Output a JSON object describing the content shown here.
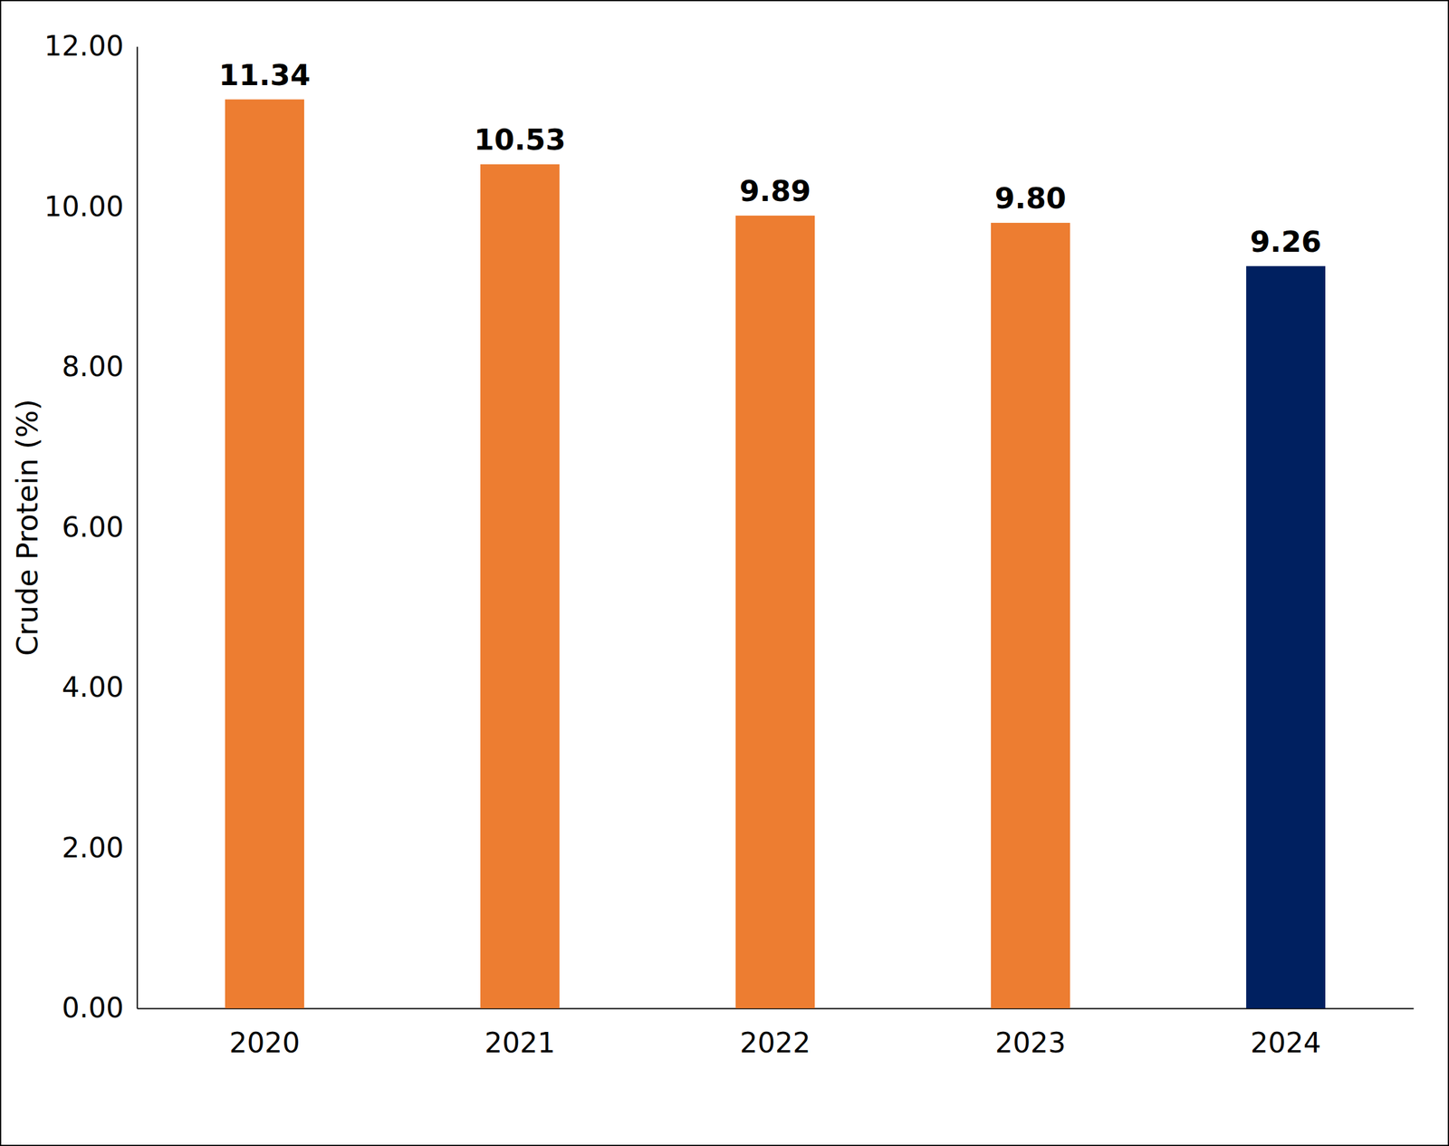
{
  "chart_data": {
    "type": "bar",
    "y_label": "Crude Protein (%)",
    "categories": [
      "2020",
      "2021",
      "2022",
      "2023",
      "2024"
    ],
    "values": [
      11.34,
      10.53,
      9.89,
      9.8,
      9.26
    ],
    "value_labels": [
      "11.34",
      "10.53",
      "9.89",
      "9.80",
      "9.26"
    ],
    "colors": [
      "#ED7D31",
      "#ED7D31",
      "#ED7D31",
      "#ED7D31",
      "#002060"
    ],
    "ylim": [
      0,
      12
    ],
    "yticks": [
      {
        "value": 0,
        "label": "0.00"
      },
      {
        "value": 2,
        "label": "2.00"
      },
      {
        "value": 4,
        "label": "4.00"
      },
      {
        "value": 6,
        "label": "6.00"
      },
      {
        "value": 8,
        "label": "8.00"
      },
      {
        "value": 10,
        "label": "10.00"
      },
      {
        "value": 12,
        "label": "12.00"
      }
    ],
    "grid": false,
    "data_labels": true
  }
}
